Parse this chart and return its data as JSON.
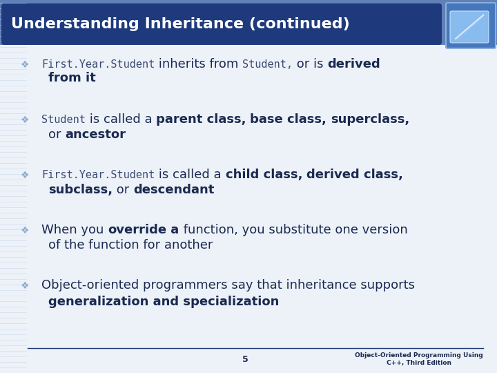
{
  "title": "Understanding Inheritance (continued)",
  "title_bg_color": "#1e3a7c",
  "title_text_color": "#ffffff",
  "slide_bg_top": "#6a8fc0",
  "body_bg_color": "#edf2f9",
  "stripe_color": "#c8d8ec",
  "bullet_color": "#8aaacf",
  "text_color": "#1a2a50",
  "mono_color": "#3a4a70",
  "footer_line_color": "#1e3a7c",
  "footer_text_color": "#1a2a50",
  "page_number": "5",
  "footer_right": "Object-Oriented Programming Using\nC++, Third Edition",
  "title_fontsize": 16,
  "body_fontsize": 13,
  "mono_fontsize": 11,
  "cont_fontsize": 13,
  "bullets": [
    {
      "line1": [
        {
          "text": "First.Year.Student",
          "style": "mono"
        },
        {
          "text": " inherits from ",
          "style": "normal"
        },
        {
          "text": "Student,",
          "style": "mono"
        },
        {
          "text": " or is ",
          "style": "normal"
        },
        {
          "text": "derived",
          "style": "bold"
        }
      ],
      "line2": [
        {
          "text": "from it",
          "style": "bold"
        }
      ]
    },
    {
      "line1": [
        {
          "text": "Student",
          "style": "mono"
        },
        {
          "text": " is called a ",
          "style": "normal"
        },
        {
          "text": "parent class,",
          "style": "bold"
        },
        {
          "text": " ",
          "style": "normal"
        },
        {
          "text": "base class,",
          "style": "bold"
        },
        {
          "text": " ",
          "style": "normal"
        },
        {
          "text": "superclass,",
          "style": "bold"
        }
      ],
      "line2": [
        {
          "text": "or ",
          "style": "normal"
        },
        {
          "text": "ancestor",
          "style": "bold"
        }
      ]
    },
    {
      "line1": [
        {
          "text": "First.Year.Student",
          "style": "mono"
        },
        {
          "text": " is called a ",
          "style": "normal"
        },
        {
          "text": "child class,",
          "style": "bold"
        },
        {
          "text": " ",
          "style": "normal"
        },
        {
          "text": "derived class,",
          "style": "bold"
        }
      ],
      "line2": [
        {
          "text": "subclass,",
          "style": "bold"
        },
        {
          "text": " or ",
          "style": "normal"
        },
        {
          "text": "descendant",
          "style": "bold"
        }
      ]
    },
    {
      "line1": [
        {
          "text": "When you ",
          "style": "normal"
        },
        {
          "text": "override",
          "style": "bold"
        },
        {
          "text": " a",
          "style": "bold"
        },
        {
          "text": " function, you substitute one version",
          "style": "normal"
        }
      ],
      "line2": [
        {
          "text": "of the function for another",
          "style": "normal"
        }
      ]
    },
    {
      "line1": [
        {
          "text": "Object-oriented programmers say that inheritance supports",
          "style": "normal"
        }
      ],
      "line2": [
        {
          "text": "generalization and specialization",
          "style": "bold"
        }
      ]
    }
  ]
}
